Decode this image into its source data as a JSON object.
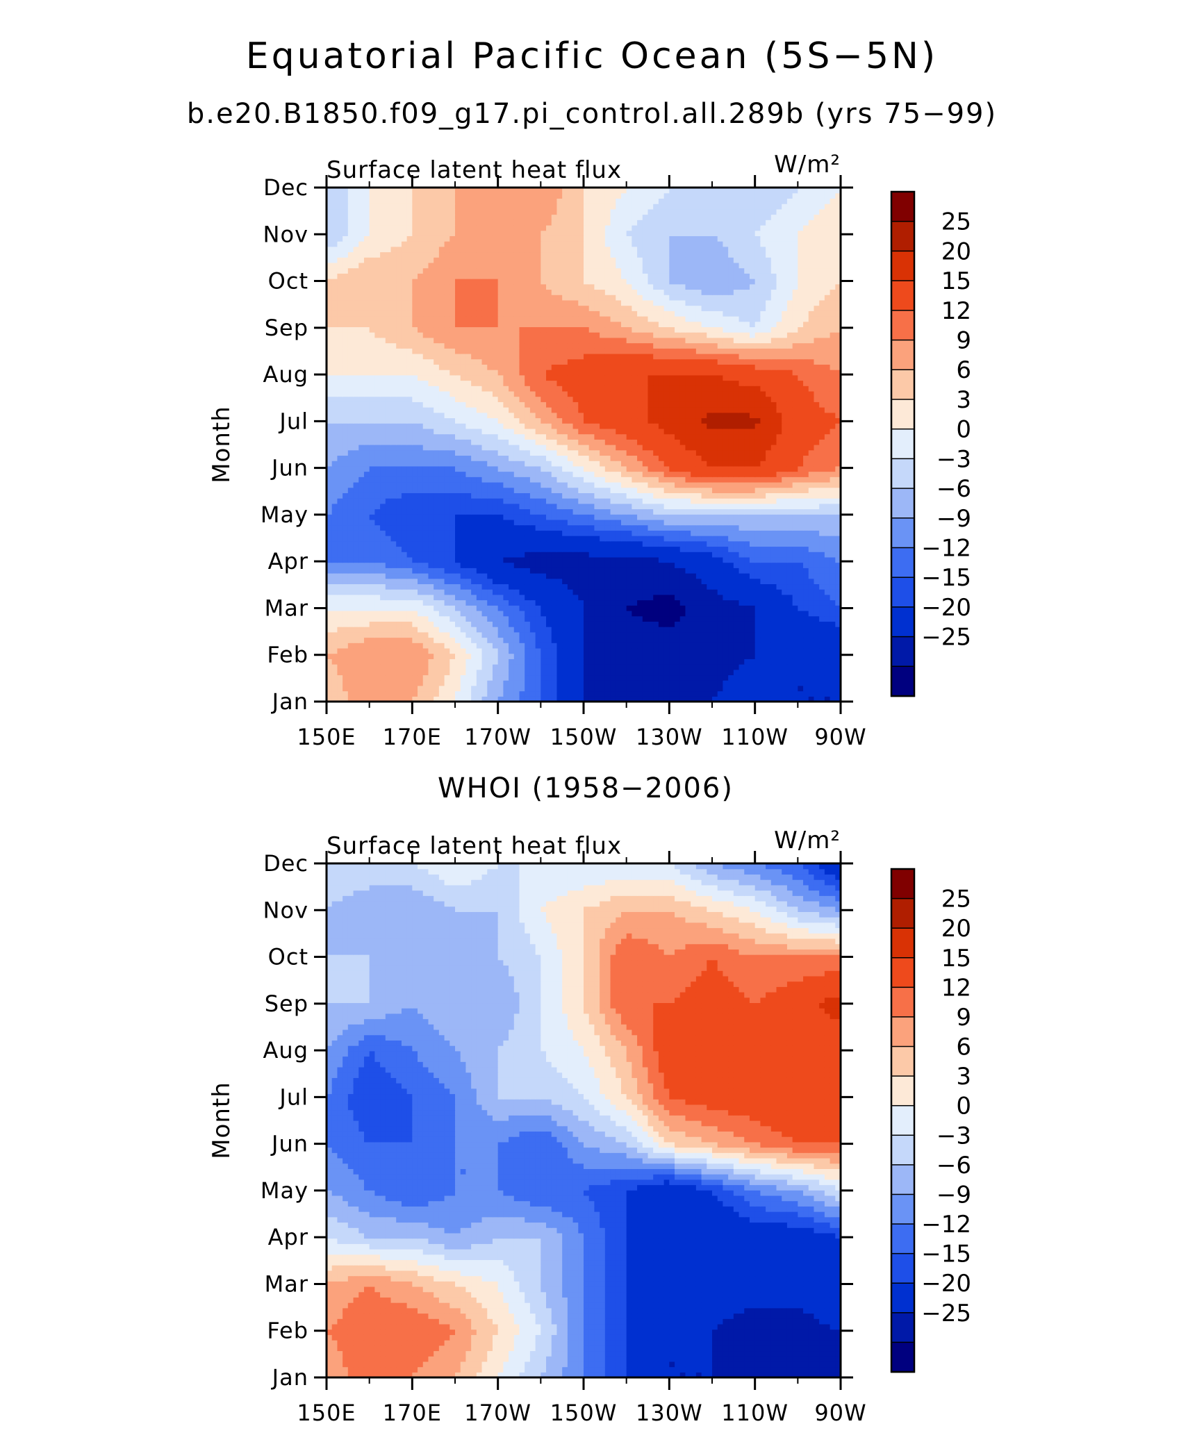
{
  "figure": {
    "title": "Equatorial Pacific Ocean (5S−5N)",
    "subtitle": "b.e20.B1850.f09_g17.pi_control.all.289b (yrs 75−99)",
    "panel2_title": "WHOI (1958−2006)"
  },
  "colorscale": {
    "levels": [
      "25",
      "20",
      "15",
      "12",
      "9",
      "6",
      "3",
      "0",
      "−3",
      "−6",
      "−9",
      "−12",
      "−15",
      "−20",
      "−25"
    ],
    "level_values": [
      -25,
      -20,
      -15,
      -12,
      -9,
      -6,
      -3,
      0,
      3,
      6,
      9,
      12,
      15,
      20,
      25
    ],
    "colors": [
      "#00007f",
      "#0019a8",
      "#0030d0",
      "#1e4fe8",
      "#3d6df2",
      "#6a93f5",
      "#9cb7f7",
      "#c5d8fa",
      "#e3eefc",
      "#fde9d7",
      "#fcc9a8",
      "#fba27c",
      "#f77048",
      "#ee4a1c",
      "#d93205",
      "#b01e00",
      "#800000"
    ]
  },
  "chart_data": [
    {
      "type": "heatmap",
      "title": "Surface latent heat flux",
      "units": "W/m²",
      "xlabel": "",
      "ylabel": "Month",
      "x_ticks": [
        "150E",
        "170E",
        "170W",
        "150W",
        "130W",
        "110W",
        "90W"
      ],
      "x_lon": [
        150,
        170,
        190,
        210,
        230,
        250,
        270
      ],
      "y_ticks": [
        "Jan",
        "Feb",
        "Mar",
        "Apr",
        "May",
        "Jun",
        "Jul",
        "Aug",
        "Sep",
        "Oct",
        "Nov",
        "Dec"
      ],
      "z": [
        [
          6,
          12,
          9,
          3,
          -6,
          -12,
          -20,
          -20,
          -22,
          -20,
          -15,
          -20,
          -20
        ],
        [
          9,
          12,
          12,
          6,
          -3,
          -12,
          -20,
          -22,
          -22,
          -23,
          -20,
          -20,
          -20
        ],
        [
          3,
          3,
          3,
          -3,
          -9,
          -15,
          -20,
          -25,
          -27,
          -22,
          -20,
          -15,
          -12
        ],
        [
          -9,
          -9,
          -12,
          -15,
          -20,
          -22,
          -22,
          -22,
          -20,
          -17,
          -12,
          -12,
          -9
        ],
        [
          -9,
          -12,
          -15,
          -15,
          -15,
          -12,
          -9,
          -6,
          -3,
          -3,
          -3,
          -3,
          -3
        ],
        [
          -6,
          -9,
          -9,
          -9,
          -6,
          -3,
          3,
          9,
          15,
          20,
          20,
          15,
          12
        ],
        [
          -3,
          -3,
          -3,
          0,
          3,
          9,
          15,
          18,
          22,
          26,
          26,
          17,
          15
        ],
        [
          3,
          3,
          3,
          6,
          9,
          15,
          17,
          20,
          20,
          20,
          18,
          15,
          12
        ],
        [
          6,
          6,
          9,
          12,
          12,
          12,
          12,
          9,
          6,
          3,
          0,
          6,
          9
        ],
        [
          6,
          9,
          9,
          12,
          12,
          9,
          6,
          3,
          -3,
          -6,
          -3,
          3,
          6
        ],
        [
          -3,
          3,
          6,
          9,
          12,
          9,
          6,
          0,
          -3,
          -3,
          0,
          3,
          6
        ],
        [
          -3,
          3,
          6,
          9,
          12,
          12,
          6,
          3,
          0,
          -3,
          -3,
          0,
          3
        ]
      ]
    },
    {
      "type": "heatmap",
      "title": "Surface latent heat flux",
      "units": "W/m²",
      "xlabel": "",
      "ylabel": "Month",
      "x_ticks": [
        "150E",
        "170E",
        "170W",
        "150W",
        "130W",
        "110W",
        "90W"
      ],
      "x_lon": [
        150,
        170,
        190,
        210,
        230,
        250,
        270
      ],
      "y_ticks": [
        "Jan",
        "Feb",
        "Mar",
        "Apr",
        "May",
        "Jun",
        "Jul",
        "Aug",
        "Sep",
        "Oct",
        "Nov",
        "Dec"
      ],
      "z": [
        [
          9,
          15,
          12,
          9,
          3,
          -3,
          -9,
          -15,
          -20,
          -20,
          -20,
          -20,
          -25
        ],
        [
          12,
          15,
          15,
          12,
          6,
          0,
          -9,
          -15,
          -20,
          -20,
          -22,
          -22,
          -20
        ],
        [
          9,
          12,
          9,
          6,
          3,
          -3,
          -9,
          -15,
          -18,
          -18,
          -18,
          -18,
          -15
        ],
        [
          0,
          -3,
          -3,
          -6,
          -3,
          -3,
          -9,
          -15,
          -18,
          -20,
          -18,
          -18,
          -15
        ],
        [
          -6,
          -9,
          -12,
          -9,
          -9,
          -12,
          -12,
          -15,
          -20,
          -15,
          -9,
          -6,
          0
        ],
        [
          -9,
          -12,
          -12,
          -9,
          -9,
          -12,
          -6,
          -3,
          6,
          9,
          12,
          15,
          15
        ],
        [
          -9,
          -15,
          -12,
          -9,
          -3,
          -3,
          0,
          6,
          15,
          17,
          18,
          20,
          17
        ],
        [
          -6,
          -12,
          -9,
          -6,
          -3,
          0,
          3,
          9,
          18,
          20,
          18,
          18,
          17
        ],
        [
          -3,
          -3,
          -6,
          -3,
          -6,
          0,
          6,
          15,
          15,
          17,
          15,
          18,
          22
        ],
        [
          -3,
          -3,
          -6,
          -6,
          -3,
          0,
          6,
          15,
          12,
          15,
          12,
          12,
          12
        ],
        [
          -3,
          -6,
          -6,
          -3,
          -3,
          3,
          6,
          9,
          9,
          6,
          3,
          -3,
          -6
        ],
        [
          0,
          0,
          0,
          3,
          0,
          0,
          0,
          0,
          0,
          -6,
          -9,
          -12,
          -20
        ]
      ]
    }
  ]
}
